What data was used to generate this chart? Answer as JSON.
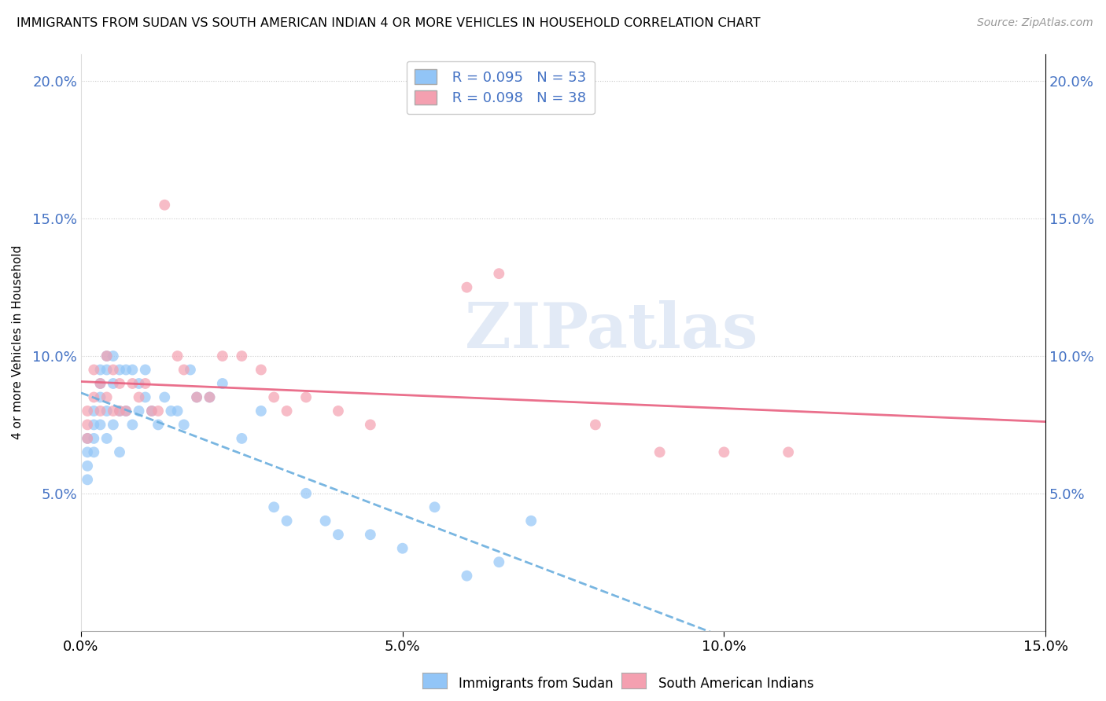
{
  "title": "IMMIGRANTS FROM SUDAN VS SOUTH AMERICAN INDIAN 4 OR MORE VEHICLES IN HOUSEHOLD CORRELATION CHART",
  "source": "Source: ZipAtlas.com",
  "ylabel": "4 or more Vehicles in Household",
  "legend_label1": "Immigrants from Sudan",
  "legend_label2": "South American Indians",
  "R1": "0.095",
  "N1": "53",
  "R2": "0.098",
  "N2": "38",
  "color1": "#92C5F7",
  "color2": "#F4A0B0",
  "watermark_text": "ZIPatlas",
  "sudan_x": [
    0.001,
    0.001,
    0.001,
    0.001,
    0.002,
    0.002,
    0.002,
    0.002,
    0.003,
    0.003,
    0.003,
    0.003,
    0.004,
    0.004,
    0.004,
    0.004,
    0.005,
    0.005,
    0.005,
    0.006,
    0.006,
    0.006,
    0.007,
    0.007,
    0.008,
    0.008,
    0.009,
    0.009,
    0.01,
    0.01,
    0.011,
    0.012,
    0.013,
    0.014,
    0.015,
    0.016,
    0.017,
    0.018,
    0.02,
    0.022,
    0.025,
    0.028,
    0.03,
    0.032,
    0.035,
    0.038,
    0.04,
    0.045,
    0.05,
    0.055,
    0.06,
    0.065,
    0.07
  ],
  "sudan_y": [
    0.07,
    0.065,
    0.06,
    0.055,
    0.08,
    0.075,
    0.07,
    0.065,
    0.095,
    0.09,
    0.085,
    0.075,
    0.1,
    0.095,
    0.08,
    0.07,
    0.1,
    0.09,
    0.075,
    0.095,
    0.08,
    0.065,
    0.095,
    0.08,
    0.095,
    0.075,
    0.09,
    0.08,
    0.095,
    0.085,
    0.08,
    0.075,
    0.085,
    0.08,
    0.08,
    0.075,
    0.095,
    0.085,
    0.085,
    0.09,
    0.07,
    0.08,
    0.045,
    0.04,
    0.05,
    0.04,
    0.035,
    0.035,
    0.03,
    0.045,
    0.02,
    0.025,
    0.04
  ],
  "sai_x": [
    0.001,
    0.001,
    0.001,
    0.002,
    0.002,
    0.003,
    0.003,
    0.004,
    0.004,
    0.005,
    0.005,
    0.006,
    0.006,
    0.007,
    0.008,
    0.009,
    0.01,
    0.011,
    0.012,
    0.013,
    0.015,
    0.016,
    0.018,
    0.02,
    0.022,
    0.025,
    0.028,
    0.03,
    0.032,
    0.035,
    0.04,
    0.045,
    0.06,
    0.065,
    0.08,
    0.09,
    0.1,
    0.11
  ],
  "sai_y": [
    0.08,
    0.075,
    0.07,
    0.095,
    0.085,
    0.09,
    0.08,
    0.1,
    0.085,
    0.095,
    0.08,
    0.09,
    0.08,
    0.08,
    0.09,
    0.085,
    0.09,
    0.08,
    0.08,
    0.155,
    0.1,
    0.095,
    0.085,
    0.085,
    0.1,
    0.1,
    0.095,
    0.085,
    0.08,
    0.085,
    0.08,
    0.075,
    0.125,
    0.13,
    0.075,
    0.065,
    0.065,
    0.065
  ],
  "xlim": [
    0.0,
    0.15
  ],
  "ylim": [
    0.0,
    0.21
  ],
  "yticks": [
    0.05,
    0.1,
    0.15,
    0.2
  ],
  "xticks": [
    0.0,
    0.05,
    0.1,
    0.15
  ],
  "xticklabels": [
    "0.0%",
    "5.0%",
    "10.0%",
    "15.0%"
  ]
}
